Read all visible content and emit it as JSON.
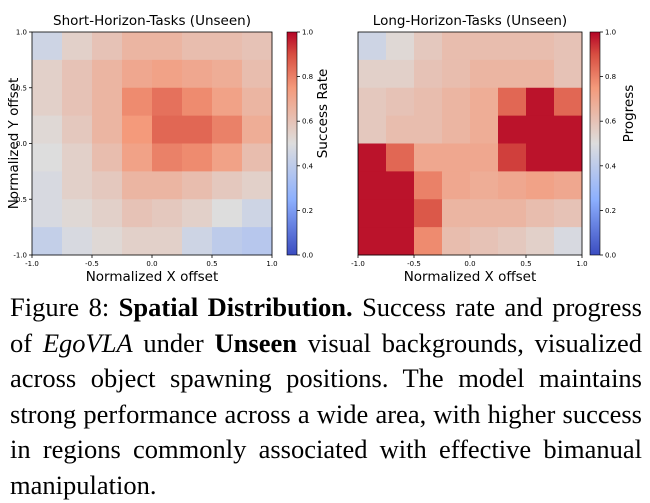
{
  "chart_data": [
    {
      "type": "heatmap",
      "title": "Short-Horizon-Tasks (Unseen)",
      "xlabel": "Normalized X offset",
      "ylabel": "Normalized Y offset",
      "colorbar_label": "Success Rate",
      "x_range": [
        -1.0,
        1.0
      ],
      "y_range": [
        -1.0,
        1.0
      ],
      "color_range": [
        0.0,
        1.0
      ],
      "colormap": "coolwarm",
      "x_ticks": [
        "-1.0",
        "-0.5",
        "0.0",
        "0.5",
        "1.0"
      ],
      "y_ticks": [
        "1.0",
        "0.5",
        "0.0",
        "-0.5",
        "-1.0"
      ],
      "colorbar_ticks": [
        "1.0",
        "0.8",
        "0.6",
        "0.4",
        "0.2",
        "0.0"
      ],
      "rows_top_to_bottom": [
        [
          0.45,
          0.55,
          0.6,
          0.65,
          0.65,
          0.62,
          0.62,
          0.6
        ],
        [
          0.55,
          0.6,
          0.65,
          0.7,
          0.72,
          0.7,
          0.68,
          0.62
        ],
        [
          0.55,
          0.6,
          0.65,
          0.78,
          0.83,
          0.78,
          0.72,
          0.65
        ],
        [
          0.52,
          0.58,
          0.65,
          0.75,
          0.85,
          0.85,
          0.8,
          0.68
        ],
        [
          0.5,
          0.55,
          0.62,
          0.72,
          0.8,
          0.78,
          0.72,
          0.62
        ],
        [
          0.48,
          0.55,
          0.58,
          0.65,
          0.65,
          0.62,
          0.58,
          0.55
        ],
        [
          0.48,
          0.52,
          0.55,
          0.6,
          0.58,
          0.55,
          0.5,
          0.45
        ],
        [
          0.42,
          0.48,
          0.52,
          0.55,
          0.55,
          0.45,
          0.4,
          0.38
        ]
      ]
    },
    {
      "type": "heatmap",
      "title": "Long-Horizon-Tasks (Unseen)",
      "xlabel": "Normalized X offset",
      "ylabel": "",
      "colorbar_label": "Progress",
      "x_range": [
        -1.0,
        1.0
      ],
      "y_range": [
        -1.0,
        1.0
      ],
      "color_range": [
        0.0,
        1.0
      ],
      "colormap": "coolwarm",
      "x_ticks": [
        "-1.0",
        "-0.5",
        "0.0",
        "0.5",
        "1.0"
      ],
      "y_ticks": [],
      "colorbar_ticks": [
        "1.0",
        "0.8",
        "0.6",
        "0.4",
        "0.2",
        "0.0"
      ],
      "rows_top_to_bottom": [
        [
          0.45,
          0.52,
          0.58,
          0.62,
          0.62,
          0.62,
          0.62,
          0.6
        ],
        [
          0.55,
          0.55,
          0.6,
          0.62,
          0.65,
          0.65,
          0.65,
          0.6
        ],
        [
          0.58,
          0.6,
          0.62,
          0.65,
          0.68,
          0.85,
          0.98,
          0.85
        ],
        [
          0.58,
          0.62,
          0.62,
          0.65,
          0.68,
          0.98,
          0.98,
          0.98
        ],
        [
          0.98,
          0.85,
          0.7,
          0.7,
          0.7,
          0.92,
          0.98,
          0.98
        ],
        [
          0.98,
          0.98,
          0.8,
          0.7,
          0.68,
          0.7,
          0.72,
          0.7
        ],
        [
          0.98,
          0.98,
          0.88,
          0.65,
          0.65,
          0.65,
          0.62,
          0.6
        ],
        [
          0.98,
          0.98,
          0.78,
          0.62,
          0.6,
          0.58,
          0.55,
          0.48
        ]
      ]
    }
  ],
  "caption": {
    "label": "Figure 8:",
    "bold_title": "Spatial Distribution.",
    "text1": "Success rate and progress of",
    "italic_name": "EgoVLA",
    "text2": "under",
    "bold_word": "Unseen",
    "text3": "visual backgrounds, visualized across object spawning positions. The model maintains strong performance across a wide area, with higher success in regions commonly associated with effective bimanual manipulation."
  }
}
